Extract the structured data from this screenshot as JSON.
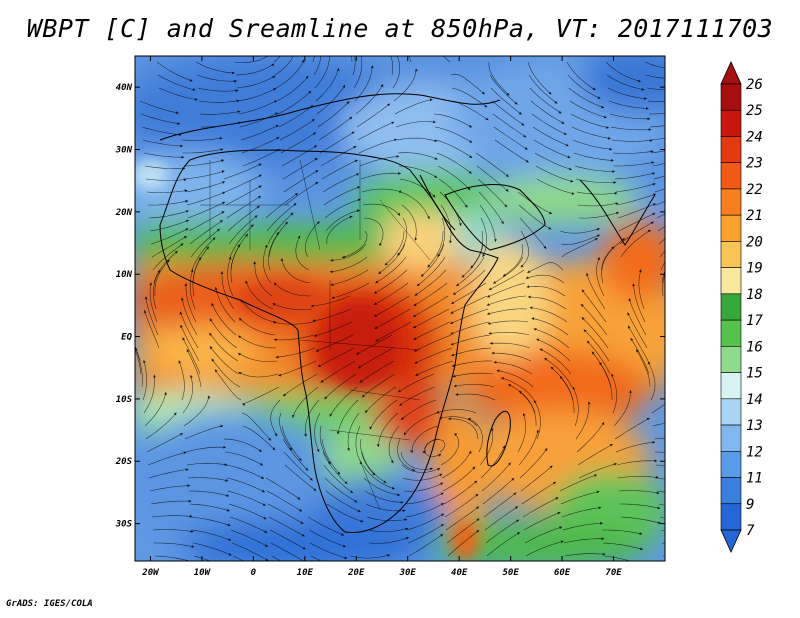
{
  "title": "WBPT [C] and Sreamline at 850hPa, VT: 2017111703",
  "credit": "GrADS: IGES/COLA",
  "map": {
    "lon_range": [
      -23,
      80
    ],
    "lat_range": [
      -36,
      45
    ],
    "lon_ticks": [
      "20W",
      "10W",
      "0",
      "10E",
      "20E",
      "30E",
      "40E",
      "50E",
      "60E",
      "70E"
    ],
    "lon_tick_values": [
      -20,
      -10,
      0,
      10,
      20,
      30,
      40,
      50,
      60,
      70
    ],
    "lat_ticks": [
      "40N",
      "30N",
      "20N",
      "10N",
      "EQ",
      "10S",
      "20S",
      "30S"
    ],
    "lat_tick_values": [
      40,
      30,
      20,
      10,
      0,
      -10,
      -20,
      -30
    ]
  },
  "colorbar": {
    "levels": [
      "26",
      "25",
      "24",
      "23",
      "22",
      "21",
      "20",
      "19",
      "18",
      "17",
      "16",
      "15",
      "14",
      "13",
      "12",
      "11",
      "9",
      "7"
    ],
    "colors": [
      "#a50f0f",
      "#c8170f",
      "#e33a12",
      "#f15a16",
      "#f77f20",
      "#f9a12d",
      "#f9c557",
      "#f9e99e",
      "#36a83c",
      "#55c24e",
      "#8fda8c",
      "#d8f4f2",
      "#a9d4f3",
      "#7fb7ee",
      "#5a9be7",
      "#3b7fde",
      "#2466d6"
    ],
    "top_color": "#a50f0f",
    "bottom_color": "#2466d6"
  }
}
